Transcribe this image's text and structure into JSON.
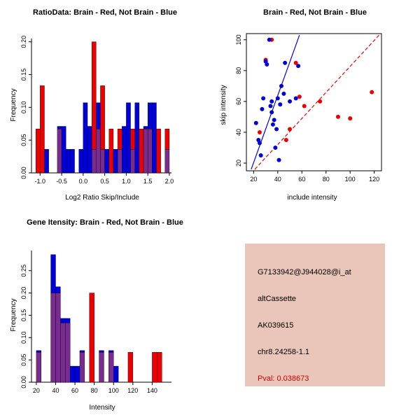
{
  "colors": {
    "red": "#ee0000",
    "blue": "#0000dd",
    "overlap": "#7a2b8f",
    "axis": "#000000",
    "background": "#ffffff"
  },
  "chart_data": [
    {
      "id": "ratio-histogram",
      "type": "bar",
      "title": "RatioData: Brain - Red, Not Brain - Blue",
      "xlabel": "Log2 Ratio Skip/Include",
      "ylabel": "Frequency",
      "xlim": [
        -1.2,
        2.05
      ],
      "ylim": [
        0,
        0.205
      ],
      "xticks": [
        -1.0,
        -0.5,
        0.0,
        0.5,
        1.0,
        1.5,
        2.0
      ],
      "xtick_labels": [
        "-1.0",
        "-0.5",
        "0.0",
        "0.5",
        "1.0",
        "1.5",
        "2.0"
      ],
      "yticks": [
        0,
        0.05,
        0.1,
        0.15,
        0.2
      ],
      "ytick_labels": [
        "0.00",
        "0.05",
        "0.10",
        "0.15",
        "0.20"
      ],
      "bin_width": 0.1,
      "legend": {
        "Brain": "red",
        "Not Brain": "blue"
      },
      "series": [
        {
          "name": "Brain",
          "color_key": "red",
          "bins": [
            [
              -1.1,
              0.067
            ],
            [
              -1.0,
              0.133
            ],
            [
              -0.6,
              0.067
            ],
            [
              0.2,
              0.2
            ],
            [
              0.3,
              0.067
            ],
            [
              0.4,
              0.133
            ],
            [
              0.6,
              0.067
            ],
            [
              0.8,
              0.067
            ],
            [
              1.1,
              0.067
            ],
            [
              1.3,
              0.067
            ],
            [
              1.4,
              0.067
            ],
            [
              1.5,
              0.067
            ],
            [
              1.7,
              0.067
            ],
            [
              1.9,
              0.067
            ]
          ]
        },
        {
          "name": "Not Brain",
          "color_key": "blue",
          "bins": [
            [
              -0.9,
              0.036
            ],
            [
              -0.6,
              0.071
            ],
            [
              -0.5,
              0.071
            ],
            [
              -0.4,
              0.036
            ],
            [
              -0.3,
              0.036
            ],
            [
              -0.1,
              0.036
            ],
            [
              0.0,
              0.107
            ],
            [
              0.1,
              0.071
            ],
            [
              0.2,
              0.036
            ],
            [
              0.3,
              0.107
            ],
            [
              0.4,
              0.036
            ],
            [
              0.5,
              0.036
            ],
            [
              0.7,
              0.036
            ],
            [
              0.8,
              0.036
            ],
            [
              0.9,
              0.071
            ],
            [
              1.0,
              0.107
            ],
            [
              1.1,
              0.036
            ],
            [
              1.2,
              0.107
            ],
            [
              1.4,
              0.071
            ],
            [
              1.5,
              0.107
            ],
            [
              1.6,
              0.107
            ],
            [
              1.9,
              0.036
            ]
          ]
        }
      ]
    },
    {
      "id": "intensity-scatter",
      "type": "scatter",
      "title": "Brain - Red, Not Brain - Blue",
      "xlabel": "include intensity",
      "ylabel": "skip intensity",
      "xlim": [
        14,
        126
      ],
      "ylim": [
        15,
        104
      ],
      "xticks": [
        20,
        40,
        60,
        80,
        100,
        120
      ],
      "xtick_labels": [
        "20",
        "40",
        "60",
        "80",
        "100",
        "120"
      ],
      "yticks": [
        20,
        40,
        60,
        80,
        100
      ],
      "ytick_labels": [
        "20",
        "40",
        "60",
        "80",
        "100"
      ],
      "series": [
        {
          "name": "Brain",
          "color_key": "red",
          "points": [
            [
              25,
              40
            ],
            [
              30,
              87
            ],
            [
              35,
              100
            ],
            [
              47,
              35
            ],
            [
              50,
              42
            ],
            [
              55,
              85
            ],
            [
              58,
              63
            ],
            [
              62,
              57
            ],
            [
              75,
              60
            ],
            [
              90,
              50
            ],
            [
              100,
              49
            ],
            [
              118,
              66
            ]
          ]
        },
        {
          "name": "Not Brain",
          "color_key": "blue",
          "points": [
            [
              22,
              46
            ],
            [
              24,
              35
            ],
            [
              25,
              33
            ],
            [
              26,
              25
            ],
            [
              27,
              55
            ],
            [
              28,
              62
            ],
            [
              30,
              86
            ],
            [
              31,
              84
            ],
            [
              33,
              100
            ],
            [
              34,
              57
            ],
            [
              35,
              53
            ],
            [
              35,
              60
            ],
            [
              36,
              45
            ],
            [
              37,
              48
            ],
            [
              38,
              30
            ],
            [
              39,
              42
            ],
            [
              40,
              62
            ],
            [
              41,
              22
            ],
            [
              42,
              58
            ],
            [
              43,
              70
            ],
            [
              45,
              65
            ],
            [
              46,
              85
            ],
            [
              50,
              60
            ],
            [
              55,
              62
            ],
            [
              57,
              83
            ]
          ]
        }
      ],
      "lines": [
        {
          "name": "not-brain-fit",
          "color_key": "blue",
          "dash": false,
          "x1": 18,
          "y1": 16,
          "x2": 58,
          "y2": 103
        },
        {
          "name": "brain-fit",
          "color_key": "red",
          "dash": true,
          "x1": 21,
          "y1": 16,
          "x2": 124,
          "y2": 103
        }
      ]
    },
    {
      "id": "gene-intensity-histogram",
      "type": "bar",
      "title": "Gene Itensity: Brain - Red, Not Brain - Blue",
      "xlabel": "Intensity",
      "ylabel": "Frequency",
      "xlim": [
        15,
        160
      ],
      "ylim": [
        0,
        0.295
      ],
      "xticks": [
        20,
        40,
        60,
        80,
        100,
        120,
        140
      ],
      "xtick_labels": [
        "20",
        "40",
        "60",
        "80",
        "100",
        "120",
        "140"
      ],
      "yticks": [
        0,
        0.05,
        0.1,
        0.15,
        0.2,
        0.25
      ],
      "ytick_labels": [
        "0.00",
        "0.05",
        "0.10",
        "0.15",
        "0.20",
        "0.25"
      ],
      "bin_width": 5,
      "legend": {
        "Brain": "red",
        "Not Brain": "blue"
      },
      "series": [
        {
          "name": "Brain",
          "color_key": "red",
          "bins": [
            [
              20,
              0.067
            ],
            [
              35,
              0.2
            ],
            [
              40,
              0.2
            ],
            [
              45,
              0.133
            ],
            [
              50,
              0.133
            ],
            [
              65,
              0.067
            ],
            [
              75,
              0.2
            ],
            [
              85,
              0.067
            ],
            [
              95,
              0.067
            ],
            [
              115,
              0.067
            ],
            [
              140,
              0.067
            ],
            [
              145,
              0.067
            ]
          ]
        },
        {
          "name": "Not Brain",
          "color_key": "blue",
          "bins": [
            [
              20,
              0.071
            ],
            [
              35,
              0.286
            ],
            [
              40,
              0.214
            ],
            [
              45,
              0.143
            ],
            [
              50,
              0.143
            ],
            [
              55,
              0.036
            ],
            [
              60,
              0.036
            ],
            [
              65,
              0.071
            ],
            [
              85,
              0.071
            ],
            [
              95,
              0.071
            ],
            [
              100,
              0.036
            ]
          ]
        }
      ]
    }
  ],
  "info_box": {
    "bg_color": "#e9c6b9",
    "lines": [
      {
        "text": "G7133942@J944028@i_at",
        "color": "#000000"
      },
      {
        "text": "altCassette",
        "color": "#000000"
      },
      {
        "text": "AK039615",
        "color": "#000000"
      },
      {
        "text": "chr8.24258-1.1",
        "color": "#000000"
      },
      {
        "text": "Pval: 0.038673",
        "color": "#d40000"
      }
    ]
  }
}
